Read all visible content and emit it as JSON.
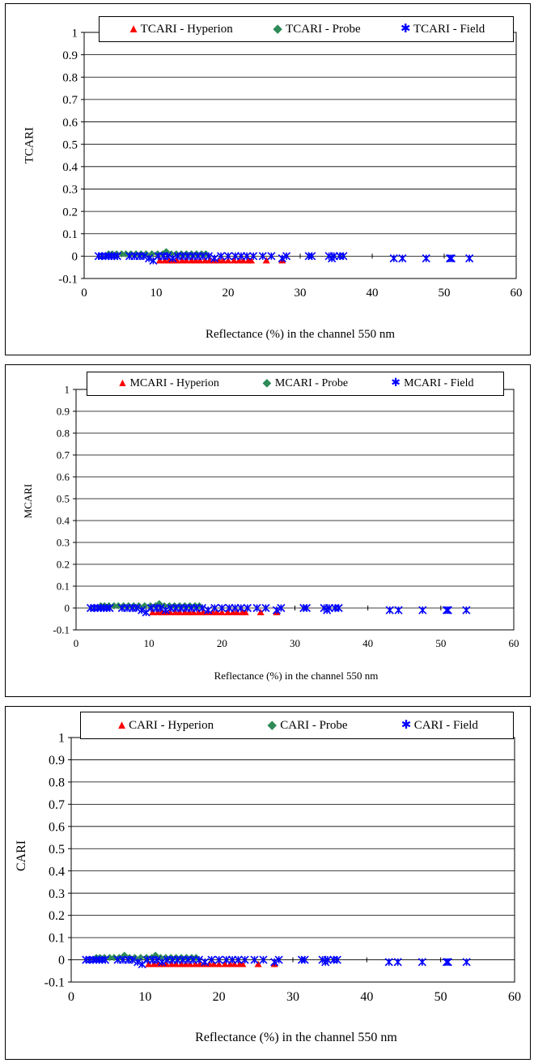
{
  "colors": {
    "hyperion": "#ff0000",
    "probe": "#2e8b57",
    "field": "#0000ff"
  },
  "charts": [
    {
      "type": "scatter",
      "xlabel": "Reflectance (%) in the channel 550 nm",
      "ylabel": "TCARI",
      "xlim": [
        0,
        60
      ],
      "ylim": [
        -0.1,
        1
      ],
      "xticks": [
        "0",
        "10",
        "20",
        "30",
        "40",
        "50",
        "60"
      ],
      "yticks": [
        "-0.1",
        "0",
        "0.1",
        "0.2",
        "0.3",
        "0.4",
        "0.5",
        "0.6",
        "0.7",
        "0.8",
        "0.9",
        "1"
      ],
      "grid": true,
      "legend_position": "top",
      "legend": [
        "TCARI - Hyperion",
        "TCARI - Probe",
        "TCARI - Field"
      ],
      "series": [
        {
          "name": "TCARI - Hyperion",
          "marker": "triangle",
          "x": [
            10.5,
            11.2,
            11.8,
            12.3,
            12.9,
            13.6,
            14.2,
            14.9,
            15.5,
            16.1,
            16.8,
            17.4,
            18.0,
            18.7,
            19.3,
            20.0,
            20.8,
            21.5,
            22.1,
            22.8,
            23.2,
            25.3,
            27.5
          ],
          "y": [
            -0.02,
            -0.02,
            -0.02,
            -0.02,
            -0.02,
            -0.02,
            -0.02,
            -0.02,
            -0.02,
            -0.02,
            -0.02,
            -0.02,
            -0.02,
            -0.02,
            -0.02,
            -0.02,
            -0.02,
            -0.02,
            -0.02,
            -0.02,
            -0.02,
            -0.02,
            -0.02
          ]
        },
        {
          "name": "TCARI - Probe",
          "marker": "diamond",
          "x": [
            3.4,
            3.9,
            4.5,
            5.2,
            5.8,
            6.5,
            7.2,
            7.9,
            8.6,
            9.4,
            10.2,
            10.9,
            11.4,
            12.1,
            12.8,
            13.5,
            14.2,
            14.9,
            15.6,
            16.3,
            16.9
          ],
          "y": [
            0.01,
            0.01,
            0.01,
            0.01,
            0.01,
            0.01,
            0.01,
            0.01,
            0.01,
            0.01,
            0.01,
            0.01,
            0.02,
            0.01,
            0.01,
            0.01,
            0.01,
            0.01,
            0.01,
            0.01,
            0.01
          ]
        },
        {
          "name": "TCARI - Field",
          "marker": "asterisk",
          "x": [
            2.0,
            2.5,
            3.0,
            3.4,
            3.8,
            4.2,
            4.6,
            6.3,
            7.0,
            7.7,
            8.3,
            9.0,
            9.6,
            10.3,
            11.0,
            11.6,
            12.3,
            13.0,
            13.7,
            14.4,
            15.1,
            15.8,
            16.5,
            17.3,
            18.1,
            19.0,
            20.0,
            21.0,
            21.8,
            22.6,
            23.5,
            24.8,
            26.0,
            27.5,
            28.1,
            31.2,
            31.6,
            34.0,
            34.4,
            34.7,
            35.5,
            36.0,
            43.0,
            44.2,
            47.5,
            50.8,
            51.0,
            53.5
          ],
          "y": [
            0,
            0,
            0,
            0,
            0,
            0,
            0,
            0,
            0,
            0,
            0,
            -0.01,
            -0.02,
            0,
            0,
            0,
            -0.01,
            0,
            0,
            0,
            0,
            0,
            0,
            0,
            -0.01,
            0,
            0,
            0,
            0,
            0,
            0,
            0,
            0,
            -0.01,
            0,
            0,
            0,
            0,
            -0.01,
            0,
            0,
            0,
            -0.01,
            -0.01,
            -0.01,
            -0.01,
            -0.01,
            -0.01
          ]
        }
      ]
    },
    {
      "type": "scatter",
      "xlabel": "Reflectance (%) in the channel 550 nm",
      "ylabel": "MCARI",
      "xlim": [
        0,
        60
      ],
      "ylim": [
        -0.1,
        1
      ],
      "xticks": [
        "0",
        "10",
        "20",
        "30",
        "40",
        "50",
        "60"
      ],
      "yticks": [
        "-0.1",
        "0",
        "0.1",
        "0.2",
        "0.3",
        "0.4",
        "0.5",
        "0.6",
        "0.7",
        "0.8",
        "0.9",
        "1"
      ],
      "grid": true,
      "legend_position": "top",
      "legend": [
        "MCARI - Hyperion",
        "MCARI - Probe",
        "MCARI - Field"
      ],
      "series": [
        {
          "name": "MCARI - Hyperion",
          "marker": "triangle",
          "x": [
            10.5,
            11.2,
            11.8,
            12.3,
            12.9,
            13.6,
            14.2,
            14.9,
            15.5,
            16.1,
            16.8,
            17.4,
            18.0,
            18.7,
            19.3,
            20.0,
            20.8,
            21.5,
            22.1,
            22.8,
            23.2,
            25.3,
            27.5
          ],
          "y": [
            -0.02,
            -0.02,
            -0.02,
            -0.02,
            -0.02,
            -0.02,
            -0.02,
            -0.02,
            -0.02,
            -0.02,
            -0.02,
            -0.02,
            -0.02,
            -0.02,
            -0.02,
            -0.02,
            -0.02,
            -0.02,
            -0.02,
            -0.02,
            -0.02,
            -0.02,
            -0.02
          ]
        },
        {
          "name": "MCARI - Probe",
          "marker": "diamond",
          "x": [
            3.4,
            3.9,
            4.5,
            5.2,
            5.8,
            6.5,
            7.2,
            7.9,
            8.6,
            9.4,
            10.2,
            10.9,
            11.4,
            12.1,
            12.8,
            13.5,
            14.2,
            14.9,
            15.6,
            16.3,
            16.9
          ],
          "y": [
            0.01,
            0.01,
            0.01,
            0.01,
            0.01,
            0.01,
            0.01,
            0.01,
            0.01,
            0.01,
            0.01,
            0.01,
            0.02,
            0.01,
            0.01,
            0.01,
            0.01,
            0.01,
            0.01,
            0.01,
            0.01
          ]
        },
        {
          "name": "MCARI - Field",
          "marker": "asterisk",
          "x": [
            2.0,
            2.5,
            3.0,
            3.4,
            3.8,
            4.2,
            4.6,
            6.3,
            7.0,
            7.7,
            8.3,
            9.0,
            9.6,
            10.3,
            11.0,
            11.6,
            12.3,
            13.0,
            13.7,
            14.4,
            15.1,
            15.8,
            16.5,
            17.3,
            18.1,
            19.0,
            20.0,
            21.0,
            21.8,
            22.6,
            23.5,
            24.8,
            26.0,
            27.5,
            28.1,
            31.2,
            31.6,
            34.0,
            34.4,
            34.7,
            35.5,
            36.0,
            43.0,
            44.2,
            47.5,
            50.8,
            51.0,
            53.5
          ],
          "y": [
            0,
            0,
            0,
            0,
            0,
            0,
            0,
            0,
            0,
            0,
            0,
            -0.01,
            -0.02,
            0,
            0,
            0,
            -0.01,
            0,
            0,
            0,
            0,
            0,
            0,
            0,
            -0.01,
            0,
            0,
            0,
            0,
            0,
            0,
            0,
            0,
            -0.01,
            0,
            0,
            0,
            0,
            -0.01,
            0,
            0,
            0,
            -0.01,
            -0.01,
            -0.01,
            -0.01,
            -0.01,
            -0.01
          ]
        }
      ]
    },
    {
      "type": "scatter",
      "xlabel": "Reflectance (%) in the channel 550 nm",
      "ylabel": "CARI",
      "xlim": [
        0,
        60
      ],
      "ylim": [
        -0.1,
        1
      ],
      "xticks": [
        "0",
        "10",
        "20",
        "30",
        "40",
        "50",
        "60"
      ],
      "yticks": [
        "-0.1",
        "0",
        "0.1",
        "0.2",
        "0.3",
        "0.4",
        "0.5",
        "0.6",
        "0.7",
        "0.8",
        "0.9",
        "1"
      ],
      "grid": true,
      "legend_position": "top",
      "legend": [
        "CARI - Hyperion",
        "CARI - Probe",
        "CARI - Field"
      ],
      "series": [
        {
          "name": "CARI - Hyperion",
          "marker": "triangle",
          "x": [
            10.5,
            11.2,
            11.8,
            12.3,
            12.9,
            13.6,
            14.2,
            14.9,
            15.5,
            16.1,
            16.8,
            17.4,
            18.0,
            18.7,
            19.3,
            20.0,
            20.8,
            21.5,
            22.1,
            22.8,
            23.2,
            25.3,
            27.5
          ],
          "y": [
            -0.02,
            -0.02,
            -0.02,
            -0.02,
            -0.02,
            -0.02,
            -0.02,
            -0.02,
            -0.02,
            -0.02,
            -0.02,
            -0.02,
            -0.02,
            -0.02,
            -0.02,
            -0.02,
            -0.02,
            -0.02,
            -0.02,
            -0.02,
            -0.02,
            -0.02,
            -0.02
          ]
        },
        {
          "name": "CARI - Probe",
          "marker": "diamond",
          "x": [
            3.4,
            3.9,
            4.5,
            5.2,
            5.8,
            6.5,
            7.2,
            7.9,
            8.6,
            9.4,
            10.2,
            10.9,
            11.4,
            12.1,
            12.8,
            13.5,
            14.2,
            14.9,
            15.6,
            16.3,
            16.9
          ],
          "y": [
            0.01,
            0.01,
            0.01,
            0.01,
            0.01,
            0.01,
            0.02,
            0.01,
            0.01,
            0.01,
            0.01,
            0.01,
            0.02,
            0.01,
            0.01,
            0.01,
            0.01,
            0.01,
            0.01,
            0.01,
            0.01
          ]
        },
        {
          "name": "CARI - Field",
          "marker": "asterisk",
          "x": [
            2.0,
            2.5,
            3.0,
            3.4,
            3.8,
            4.2,
            4.6,
            6.3,
            7.0,
            7.7,
            8.3,
            9.0,
            9.6,
            10.3,
            11.0,
            11.6,
            12.3,
            13.0,
            13.7,
            14.4,
            15.1,
            15.8,
            16.5,
            17.3,
            18.1,
            19.0,
            20.0,
            21.0,
            21.8,
            22.6,
            23.5,
            24.8,
            26.0,
            27.5,
            28.1,
            31.2,
            31.6,
            34.0,
            34.4,
            34.7,
            35.5,
            36.0,
            43.0,
            44.2,
            47.5,
            50.8,
            51.0,
            53.5
          ],
          "y": [
            0,
            0,
            0,
            0,
            0,
            0,
            0,
            0,
            0,
            0,
            0,
            -0.01,
            -0.02,
            0,
            0,
            0,
            -0.01,
            0,
            0,
            0,
            0,
            0,
            0,
            0,
            -0.01,
            0,
            0,
            0,
            0,
            0,
            0,
            0,
            0,
            -0.01,
            0,
            0,
            0,
            0,
            -0.01,
            0,
            0,
            0,
            -0.01,
            -0.01,
            -0.01,
            -0.01,
            -0.01,
            -0.01
          ]
        }
      ]
    }
  ]
}
